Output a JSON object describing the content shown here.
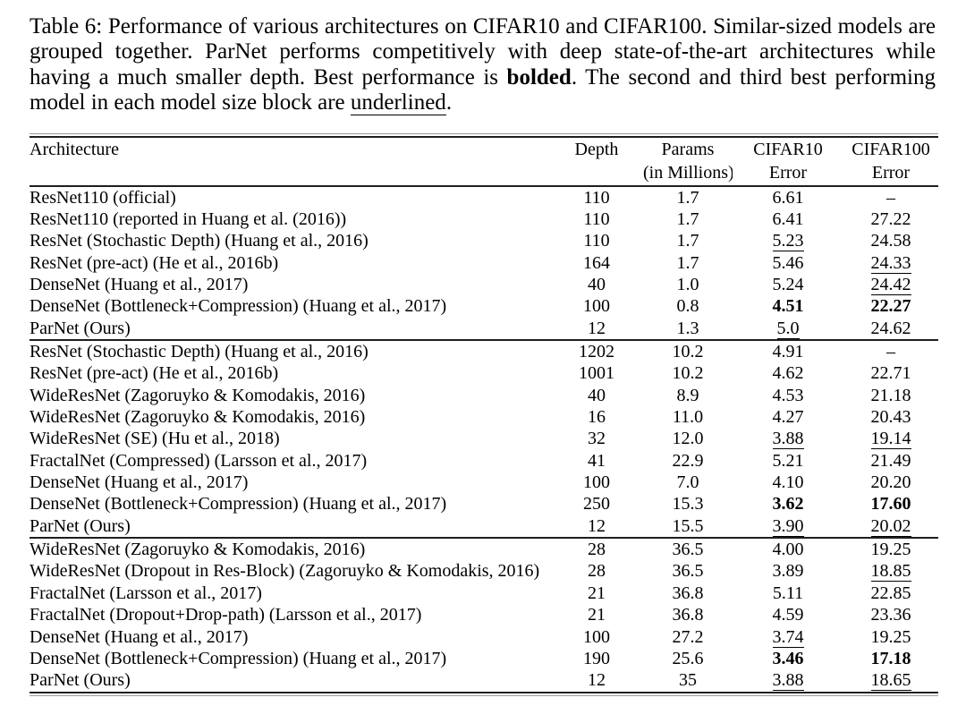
{
  "caption": {
    "part1": "Table 6: Performance of various architectures on CIFAR10 and CIFAR100. Similar-sized models are grouped together. ParNet performs competitively with deep state-of-the-art architectures while having a much smaller depth. Best performance is ",
    "bold_word": "bolded",
    "part2": ". The second and third best performing model in each model size block are ",
    "underlined_word": "underlined",
    "part3": "."
  },
  "table": {
    "columns": [
      {
        "label": "Architecture",
        "sub": ""
      },
      {
        "label": "Depth",
        "sub": ""
      },
      {
        "label": "Params",
        "sub": "(in Millions)"
      },
      {
        "label": "CIFAR10",
        "sub": "Error"
      },
      {
        "label": "CIFAR100",
        "sub": "Error"
      }
    ],
    "blocks": [
      {
        "rows": [
          {
            "arch": "ResNet110 (official)",
            "depth": "110",
            "params": "1.7",
            "c10": "6.61",
            "c10s": "",
            "c100": "–",
            "c100s": ""
          },
          {
            "arch": "ResNet110 (reported in Huang et al. (2016))",
            "depth": "110",
            "params": "1.7",
            "c10": "6.41",
            "c10s": "",
            "c100": "27.22",
            "c100s": ""
          },
          {
            "arch": "ResNet (Stochastic Depth) (Huang et al., 2016)",
            "depth": "110",
            "params": "1.7",
            "c10": "5.23",
            "c10s": "u",
            "c100": "24.58",
            "c100s": ""
          },
          {
            "arch": "ResNet (pre-act) (He et al., 2016b)",
            "depth": "164",
            "params": "1.7",
            "c10": "5.46",
            "c10s": "",
            "c100": "24.33",
            "c100s": "u"
          },
          {
            "arch": "DenseNet (Huang et al., 2017)",
            "depth": "40",
            "params": "1.0",
            "c10": "5.24",
            "c10s": "",
            "c100": "24.42",
            "c100s": "u"
          },
          {
            "arch": "DenseNet (Bottleneck+Compression) (Huang et al., 2017)",
            "depth": "100",
            "params": "0.8",
            "c10": "4.51",
            "c10s": "b",
            "c100": "22.27",
            "c100s": "b"
          },
          {
            "arch": "ParNet (Ours)",
            "depth": "12",
            "params": "1.3",
            "c10": "5.0",
            "c10s": "u",
            "c100": "24.62",
            "c100s": ""
          }
        ]
      },
      {
        "rows": [
          {
            "arch": "ResNet (Stochastic Depth) (Huang et al., 2016)",
            "depth": "1202",
            "params": "10.2",
            "c10": "4.91",
            "c10s": "",
            "c100": "–",
            "c100s": ""
          },
          {
            "arch": "ResNet (pre-act) (He et al., 2016b)",
            "depth": "1001",
            "params": "10.2",
            "c10": "4.62",
            "c10s": "",
            "c100": "22.71",
            "c100s": ""
          },
          {
            "arch": "WideResNet (Zagoruyko & Komodakis, 2016)",
            "depth": "40",
            "params": "8.9",
            "c10": "4.53",
            "c10s": "",
            "c100": "21.18",
            "c100s": ""
          },
          {
            "arch": "WideResNet (Zagoruyko & Komodakis, 2016)",
            "depth": "16",
            "params": "11.0",
            "c10": "4.27",
            "c10s": "",
            "c100": "20.43",
            "c100s": ""
          },
          {
            "arch": "WideResNet (SE) (Hu et al., 2018)",
            "depth": "32",
            "params": "12.0",
            "c10": "3.88",
            "c10s": "u",
            "c100": "19.14",
            "c100s": "u"
          },
          {
            "arch": "FractalNet (Compressed) (Larsson et al., 2017)",
            "depth": "41",
            "params": "22.9",
            "c10": "5.21",
            "c10s": "",
            "c100": "21.49",
            "c100s": ""
          },
          {
            "arch": "DenseNet (Huang et al., 2017)",
            "depth": "100",
            "params": "7.0",
            "c10": "4.10",
            "c10s": "",
            "c100": "20.20",
            "c100s": ""
          },
          {
            "arch": "DenseNet (Bottleneck+Compression) (Huang et al., 2017)",
            "depth": "250",
            "params": "15.3",
            "c10": "3.62",
            "c10s": "b",
            "c100": "17.60",
            "c100s": "b"
          },
          {
            "arch": "ParNet (Ours)",
            "depth": "12",
            "params": "15.5",
            "c10": "3.90",
            "c10s": "u",
            "c100": "20.02",
            "c100s": "u"
          }
        ]
      },
      {
        "rows": [
          {
            "arch": "WideResNet (Zagoruyko & Komodakis, 2016)",
            "depth": "28",
            "params": "36.5",
            "c10": "4.00",
            "c10s": "",
            "c100": "19.25",
            "c100s": ""
          },
          {
            "arch": "WideResNet (Dropout in Res-Block) (Zagoruyko & Komodakis, 2016)",
            "depth": "28",
            "params": "36.5",
            "c10": "3.89",
            "c10s": "",
            "c100": "18.85",
            "c100s": "u"
          },
          {
            "arch": "FractalNet (Larsson et al., 2017)",
            "depth": "21",
            "params": "36.8",
            "c10": "5.11",
            "c10s": "",
            "c100": "22.85",
            "c100s": ""
          },
          {
            "arch": "FractalNet (Dropout+Drop-path) (Larsson et al., 2017)",
            "depth": "21",
            "params": "36.8",
            "c10": "4.59",
            "c10s": "",
            "c100": "23.36",
            "c100s": ""
          },
          {
            "arch": "DenseNet (Huang et al., 2017)",
            "depth": "100",
            "params": "27.2",
            "c10": "3.74",
            "c10s": "u",
            "c100": "19.25",
            "c100s": ""
          },
          {
            "arch": "DenseNet (Bottleneck+Compression) (Huang et al., 2017)",
            "depth": "190",
            "params": "25.6",
            "c10": "3.46",
            "c10s": "b",
            "c100": "17.18",
            "c100s": "b"
          },
          {
            "arch": "ParNet (Ours)",
            "depth": "12",
            "params": "35",
            "c10": "3.88",
            "c10s": "u",
            "c100": "18.65",
            "c100s": "u"
          }
        ]
      }
    ]
  },
  "colors": {
    "text": "#000000",
    "background": "#ffffff",
    "rule_dark": "#1e1e1e",
    "rule_light": "#9a9a9a"
  }
}
